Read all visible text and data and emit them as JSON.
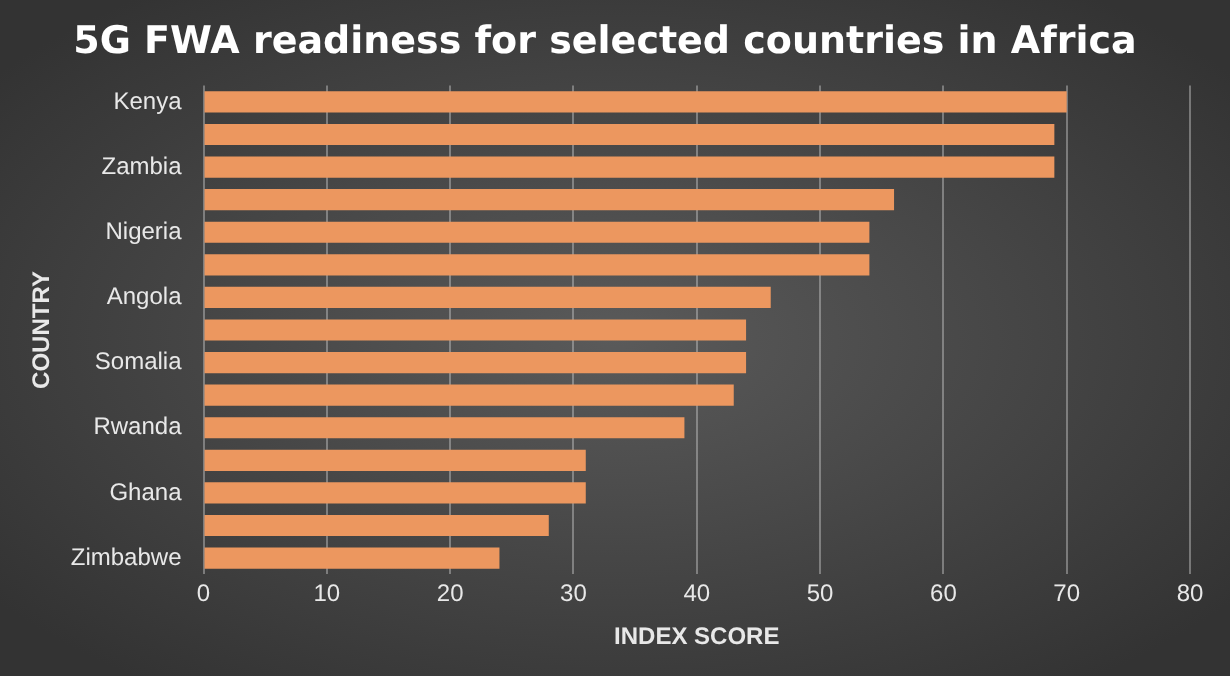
{
  "chart_data": {
    "type": "bar",
    "orientation": "horizontal",
    "title": "5G FWA readiness for selected countries in Africa",
    "xlabel": "INDEX SCORE",
    "ylabel": "COUNTRY",
    "categories": [
      "Kenya",
      null,
      "Zambia",
      null,
      "Nigeria",
      null,
      "Angola",
      null,
      "Somalia",
      null,
      "Rwanda",
      null,
      "Ghana",
      null,
      "Zimbabwe"
    ],
    "values": [
      70,
      69,
      69,
      56,
      54,
      54,
      46,
      44,
      44,
      43,
      39,
      31,
      31,
      28,
      24
    ],
    "color": "#ec975f",
    "xlim": [
      0,
      80
    ],
    "xticks": [
      0,
      10,
      20,
      30,
      40,
      50,
      60,
      70,
      80
    ],
    "grid": "x",
    "legend": false
  }
}
